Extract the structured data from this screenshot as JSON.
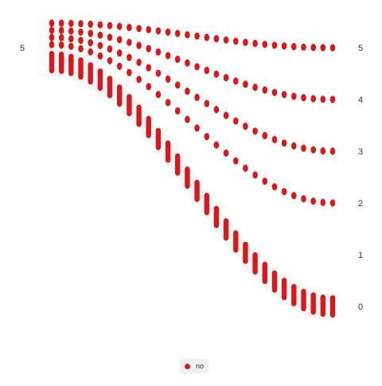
{
  "chart_data": {
    "type": "scatter",
    "title": "",
    "xlabel": "",
    "ylabel": "",
    "left_tick_label": "5",
    "right_tick_labels": [
      "5",
      "4",
      "3",
      "2",
      "1",
      "0"
    ],
    "series": [
      {
        "name": "no",
        "start": 5,
        "end": 5
      },
      {
        "start": 5,
        "end": 4
      },
      {
        "start": 5,
        "end": 3
      },
      {
        "start": 5,
        "end": 2
      },
      {
        "start": 5,
        "end": 0
      }
    ],
    "columns": 30,
    "color": "#d7191c",
    "band_color": "#eeeeee",
    "grid": false,
    "legend": {
      "position": "bottom",
      "label": "no"
    }
  }
}
